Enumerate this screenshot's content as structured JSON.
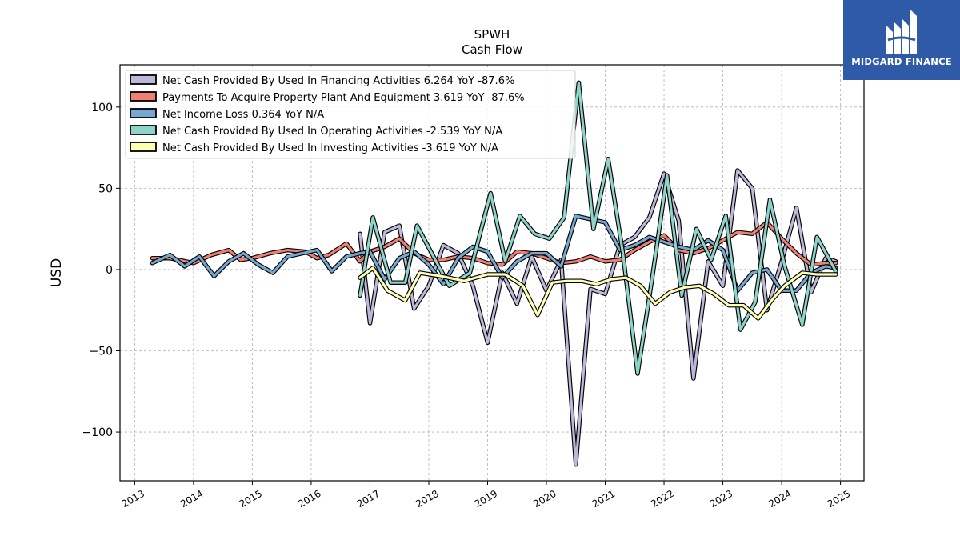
{
  "brand": {
    "name": "MIDGARD FINANCE",
    "bg_color": "#2e5aa8"
  },
  "chart_data": {
    "type": "line",
    "title": "SPWH",
    "subtitle": "Cash Flow",
    "xlabel": "",
    "ylabel": "USD",
    "ylim": [
      -130,
      126
    ],
    "xlim": [
      2012.75,
      2025.4
    ],
    "x_ticks": [
      "2013",
      "2014",
      "2015",
      "2016",
      "2017",
      "2018",
      "2019",
      "2020",
      "2021",
      "2022",
      "2023",
      "2024",
      "2025"
    ],
    "y_ticks": [
      100,
      50,
      0,
      -50,
      -100
    ],
    "y_tick_labels": [
      "100",
      "50",
      "0",
      "−50",
      "−100"
    ],
    "grid": true,
    "legend_position": "top-left",
    "series": [
      {
        "name": "Net Cash Provided By Used In Financing Activities",
        "legend_label": "Net Cash Provided By Used In Financing Activities  6.264 YoY -87.6%",
        "color": "#bcb8d9",
        "x": [
          2016.83,
          2017.0,
          2017.25,
          2017.5,
          2017.75,
          2018.0,
          2018.25,
          2018.5,
          2018.75,
          2019.0,
          2019.25,
          2019.5,
          2019.75,
          2020.0,
          2020.25,
          2020.5,
          2020.75,
          2021.0,
          2021.25,
          2021.5,
          2021.75,
          2022.0,
          2022.25,
          2022.5,
          2022.75,
          2023.0,
          2023.25,
          2023.5,
          2023.75,
          2024.0,
          2024.25,
          2024.5,
          2024.75,
          2024.92
        ],
        "y": [
          22,
          -33,
          23,
          27,
          -24,
          -10,
          15,
          10,
          -10,
          -45,
          -2,
          -21,
          8,
          -13,
          6,
          -120,
          -12,
          -15,
          15,
          20,
          32,
          59,
          30,
          -67,
          5,
          -10,
          61,
          50,
          -25,
          5,
          38,
          -14,
          7,
          5
        ]
      },
      {
        "name": "Payments To Acquire Property Plant And Equipment",
        "legend_label": "Payments To Acquire Property Plant And Equipment  3.619 YoY -87.6%",
        "color": "#f07f73",
        "x": [
          2013.3,
          2013.6,
          2014.0,
          2014.3,
          2014.6,
          2014.8,
          2015.0,
          2015.3,
          2015.6,
          2015.9,
          2016.1,
          2016.3,
          2016.6,
          2016.83,
          2017.0,
          2017.25,
          2017.5,
          2017.75,
          2018.0,
          2018.25,
          2018.5,
          2018.75,
          2019.0,
          2019.25,
          2019.5,
          2019.75,
          2020.0,
          2020.25,
          2020.5,
          2020.75,
          2021.0,
          2021.25,
          2021.5,
          2021.75,
          2022.0,
          2022.25,
          2022.5,
          2022.75,
          2023.0,
          2023.25,
          2023.5,
          2023.75,
          2024.0,
          2024.25,
          2024.5,
          2024.75,
          2024.92
        ],
        "y": [
          7,
          7,
          4,
          9,
          12,
          6,
          7,
          10,
          12,
          11,
          7,
          9,
          16,
          5,
          11,
          14,
          19,
          10,
          6,
          6,
          8,
          7,
          4,
          3,
          11,
          10,
          7,
          4,
          5,
          8,
          5,
          6,
          12,
          17,
          21,
          12,
          10,
          13,
          18,
          23,
          22,
          29,
          19,
          10,
          3,
          4,
          4
        ]
      },
      {
        "name": "Net Income Loss",
        "legend_label": "Net Income Loss  0.364 YoY N/A",
        "color": "#75a8d0",
        "x": [
          2013.3,
          2013.6,
          2013.85,
          2014.1,
          2014.35,
          2014.6,
          2014.85,
          2015.1,
          2015.35,
          2015.6,
          2015.85,
          2016.1,
          2016.35,
          2016.6,
          2016.83,
          2017.0,
          2017.25,
          2017.5,
          2017.75,
          2018.0,
          2018.25,
          2018.5,
          2018.75,
          2019.0,
          2019.25,
          2019.5,
          2019.75,
          2020.0,
          2020.25,
          2020.5,
          2020.75,
          2021.0,
          2021.25,
          2021.5,
          2021.75,
          2022.0,
          2022.25,
          2022.5,
          2022.75,
          2023.0,
          2023.25,
          2023.5,
          2023.75,
          2024.0,
          2024.25,
          2024.5,
          2024.75,
          2024.92
        ],
        "y": [
          4,
          9,
          2,
          8,
          -4,
          5,
          10,
          3,
          -2,
          8,
          10,
          12,
          -1,
          8,
          10,
          11,
          -6,
          7,
          11,
          3,
          -9,
          7,
          14,
          11,
          -5,
          5,
          10,
          10,
          2,
          33,
          31,
          29,
          12,
          15,
          20,
          17,
          14,
          12,
          18,
          12,
          -13,
          -2,
          0,
          -13,
          -13,
          -2,
          2,
          1
        ]
      },
      {
        "name": "Net Cash Provided By Used In Operating Activities",
        "legend_label": "Net Cash Provided By Used In Operating Activities  -2.539 YoY N/A",
        "color": "#8dd3c7",
        "x": [
          2016.83,
          2017.05,
          2017.35,
          2017.6,
          2017.8,
          2018.05,
          2018.35,
          2018.7,
          2019.05,
          2019.3,
          2019.55,
          2019.8,
          2020.05,
          2020.3,
          2020.55,
          2020.8,
          2021.05,
          2021.3,
          2021.55,
          2021.8,
          2022.05,
          2022.3,
          2022.55,
          2022.8,
          2023.05,
          2023.3,
          2023.55,
          2023.8,
          2024.05,
          2024.35,
          2024.6,
          2024.92
        ],
        "y": [
          -16,
          32,
          -8,
          -8,
          27,
          10,
          -10,
          -2,
          47,
          5,
          33,
          22,
          19,
          32,
          115,
          25,
          68,
          10,
          -64,
          -5,
          58,
          -16,
          25,
          6,
          33,
          -37,
          -20,
          43,
          2,
          -34,
          20,
          -1
        ]
      },
      {
        "name": "Net Cash Provided By Used In Investing Activities",
        "legend_label": "Net Cash Provided By Used In Investing Activities  -3.619 YoY N/A",
        "color": "#ffffb3",
        "x": [
          2016.83,
          2017.05,
          2017.3,
          2017.6,
          2017.85,
          2018.2,
          2018.6,
          2019.0,
          2019.3,
          2019.6,
          2019.85,
          2020.1,
          2020.35,
          2020.6,
          2020.85,
          2021.1,
          2021.35,
          2021.6,
          2021.85,
          2022.1,
          2022.35,
          2022.6,
          2022.85,
          2023.1,
          2023.35,
          2023.6,
          2023.85,
          2024.05,
          2024.35,
          2024.6,
          2024.92
        ],
        "y": [
          -5,
          1,
          -13,
          -19,
          -2,
          -4,
          -7,
          -3,
          -3,
          -10,
          -28,
          -8,
          -7,
          -7,
          -9,
          -6,
          -5,
          -10,
          -21,
          -14,
          -11,
          -10,
          -15,
          -22,
          -22,
          -30,
          -18,
          -10,
          -2,
          -3,
          -3
        ]
      }
    ]
  }
}
